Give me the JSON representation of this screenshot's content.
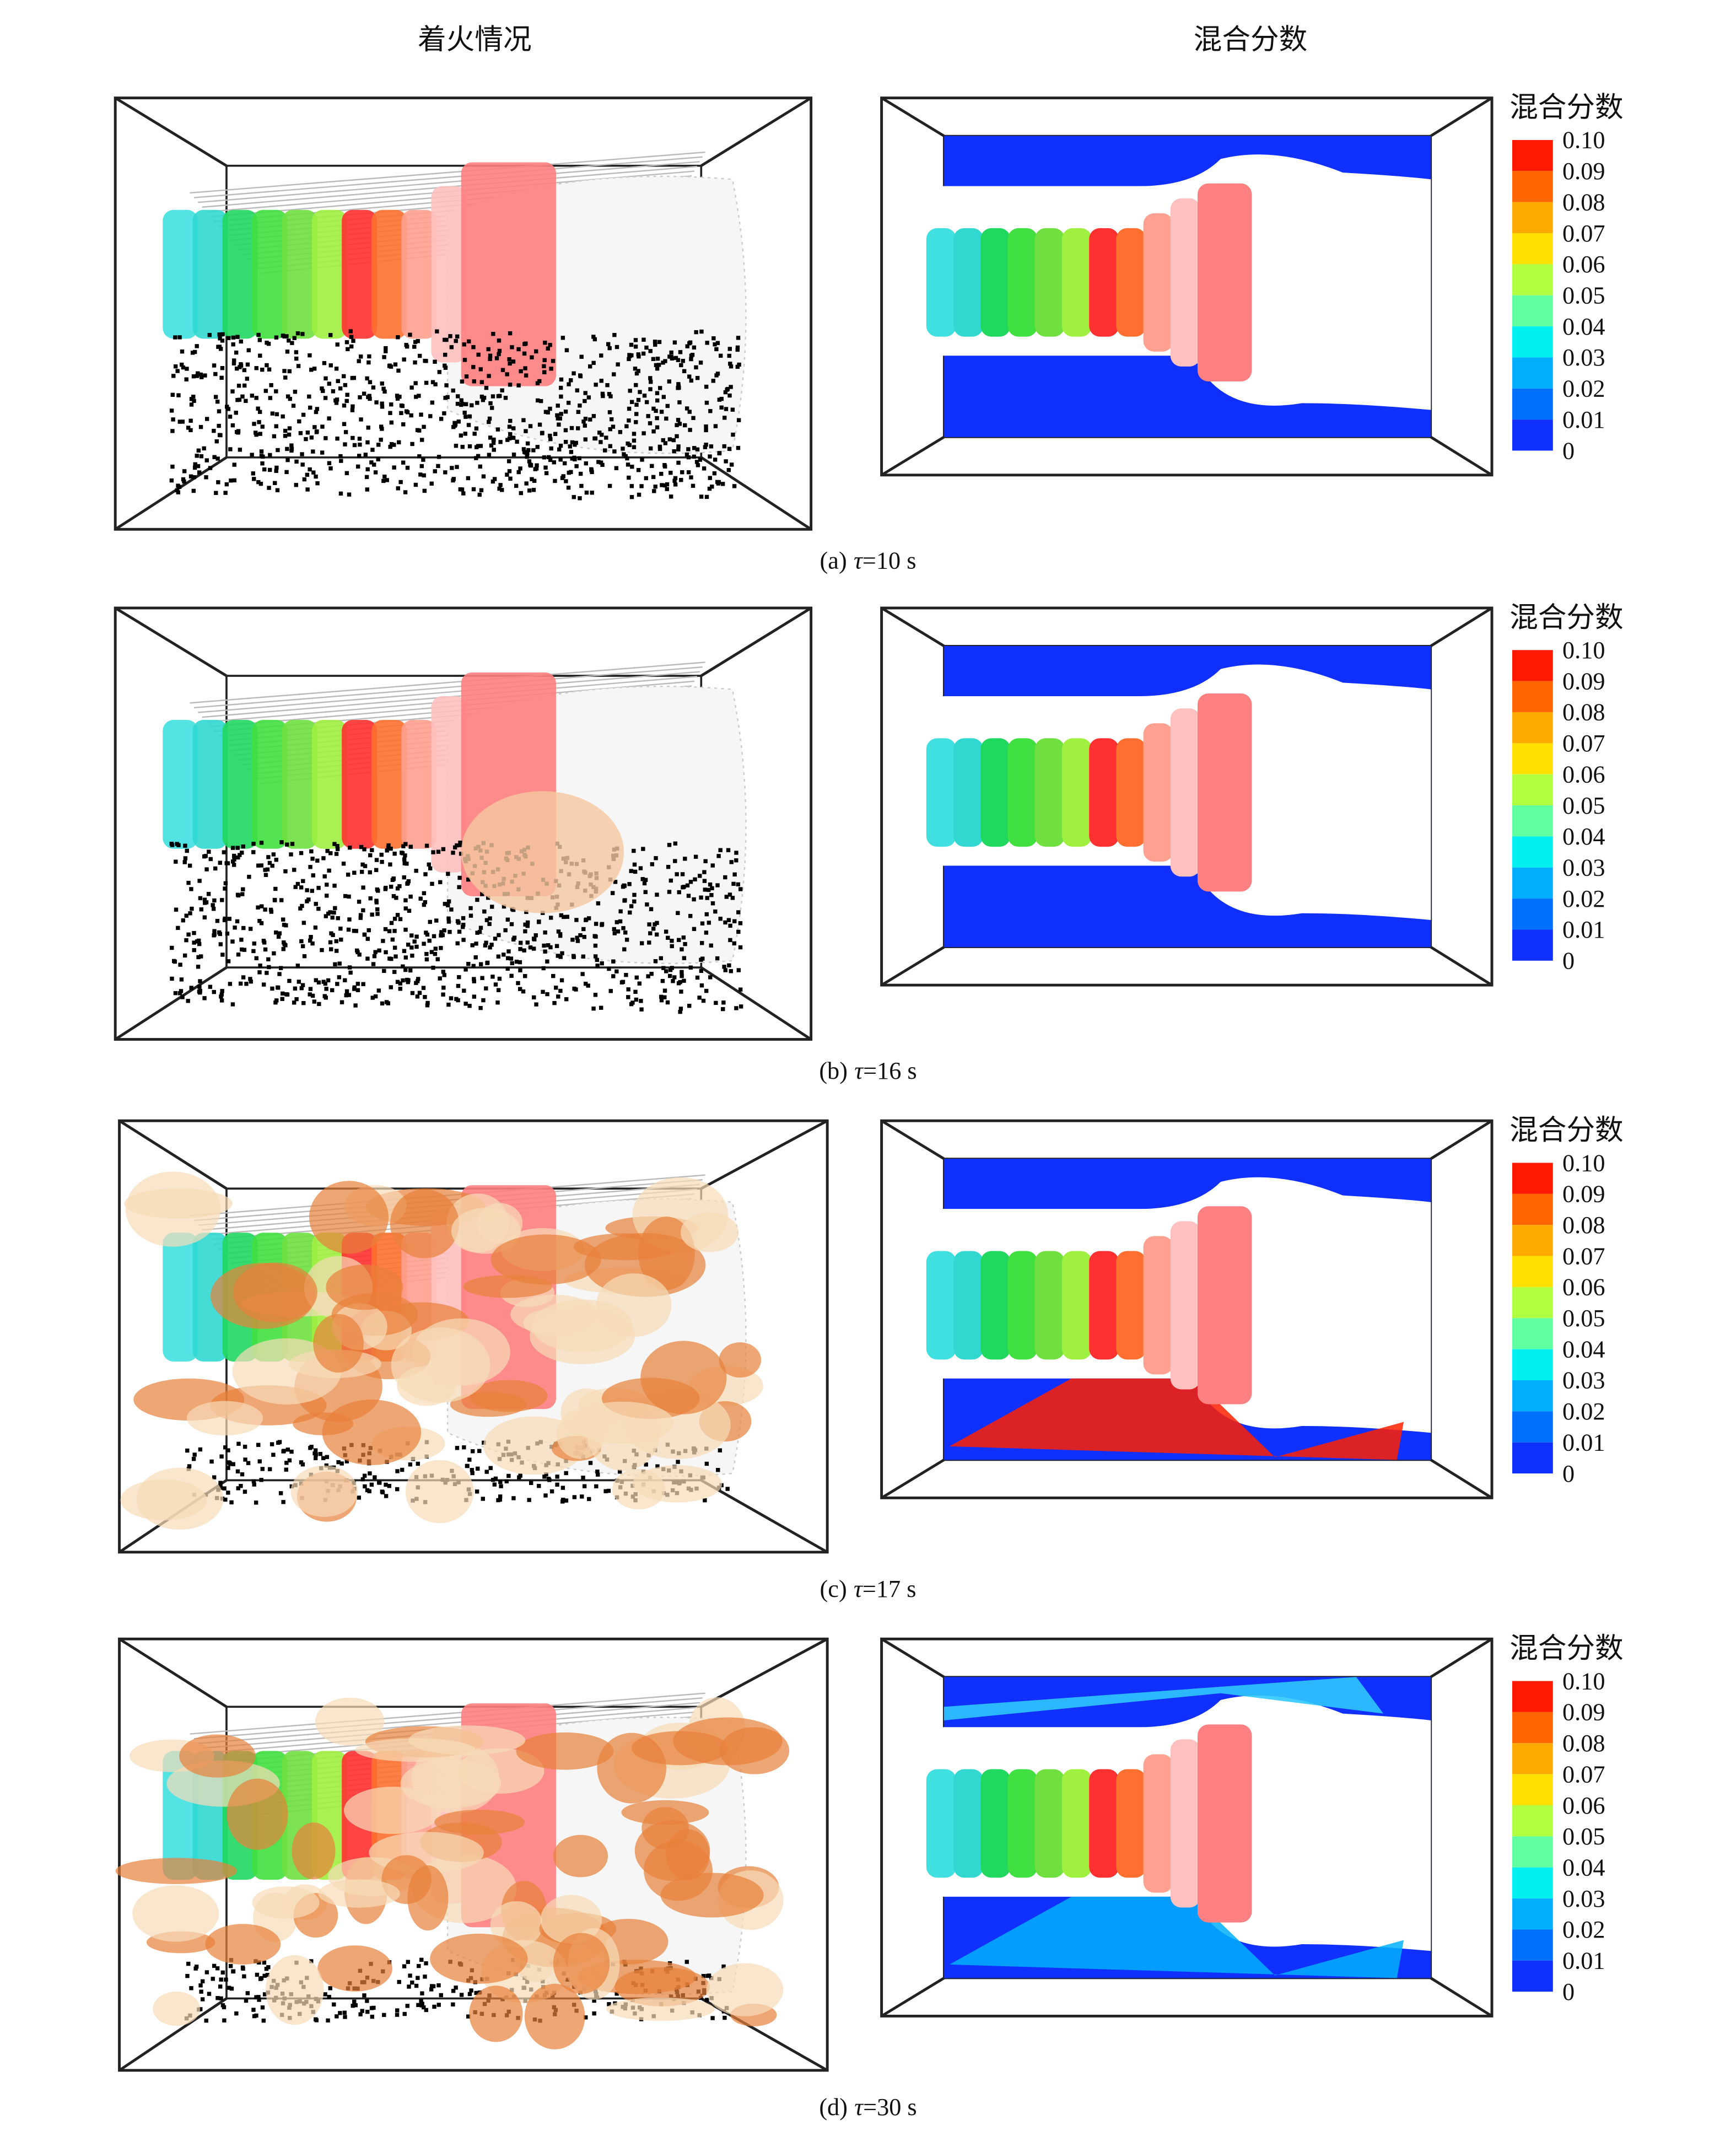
{
  "header": {
    "left": "着火情况",
    "right": "混合分数"
  },
  "colorbar": {
    "title": "混合分数",
    "labels": [
      "0.10",
      "0.09",
      "0.08",
      "0.07",
      "0.06",
      "0.05",
      "0.04",
      "0.03",
      "0.02",
      "0.01",
      "0"
    ]
  },
  "panels": [
    {
      "label": "(a)",
      "symbol": "τ",
      "time": "=10 s"
    },
    {
      "label": "(b)",
      "symbol": "τ",
      "time": "=16 s"
    },
    {
      "label": "(c)",
      "symbol": "τ",
      "time": "=17 s"
    },
    {
      "label": "(d)",
      "symbol": "τ",
      "time": "=30 s"
    }
  ]
}
